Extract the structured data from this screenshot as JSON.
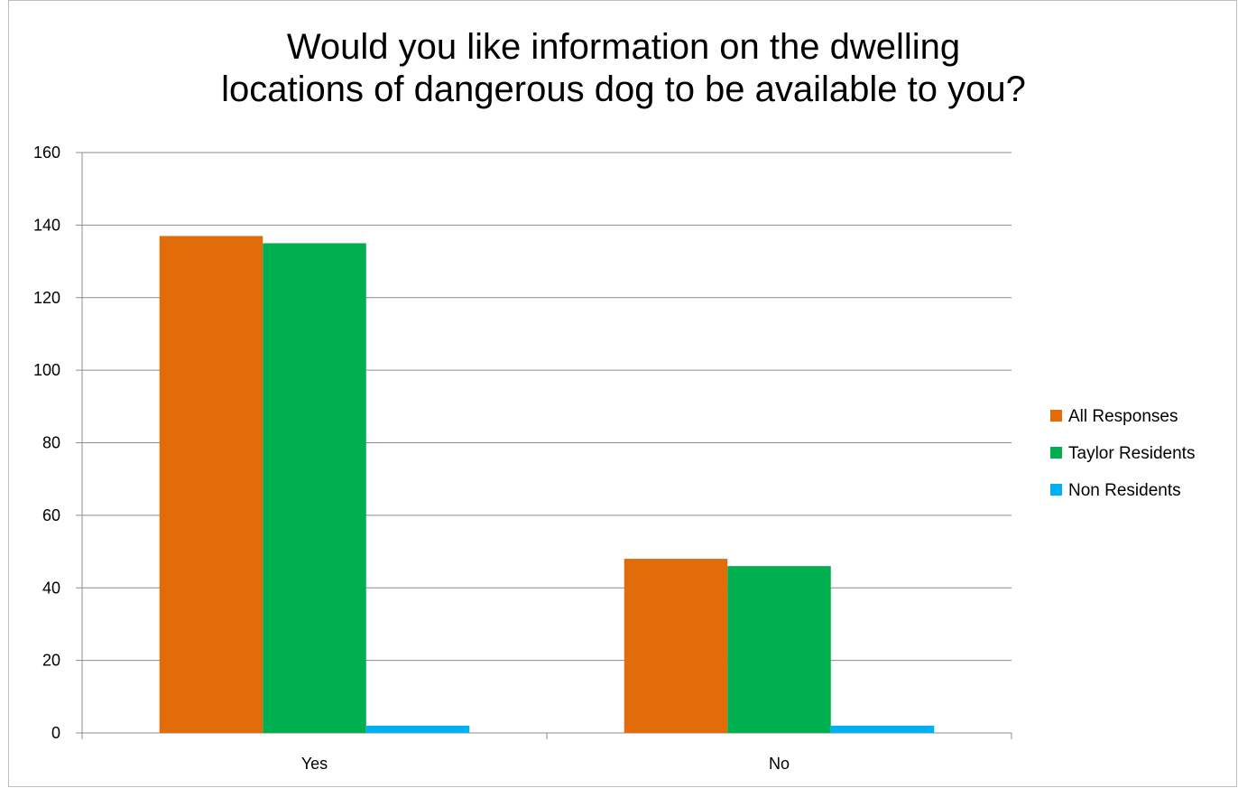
{
  "chart_data": {
    "type": "bar",
    "title_lines": [
      "Would you like information on the dwelling",
      "locations of dangerous dog to be available to you?"
    ],
    "categories": [
      "Yes",
      "No"
    ],
    "series": [
      {
        "name": "All Responses",
        "color": "#E36C0A",
        "values": [
          137,
          48
        ]
      },
      {
        "name": "Taylor Residents",
        "color": "#00B050",
        "values": [
          135,
          46
        ]
      },
      {
        "name": "Non Residents",
        "color": "#00B0F0",
        "values": [
          2,
          2
        ]
      }
    ],
    "ylim": [
      0,
      160
    ],
    "yticks": [
      0,
      20,
      40,
      60,
      80,
      100,
      120,
      140,
      160
    ],
    "grid": true,
    "legend_position": "right"
  }
}
